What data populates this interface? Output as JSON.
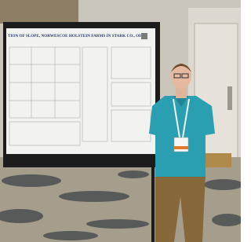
{
  "poster": {
    "title": "TION OF SLOPE, NORWESCOE HOLSTEIN FARMS IN STARK CO., OHIO"
  }
}
